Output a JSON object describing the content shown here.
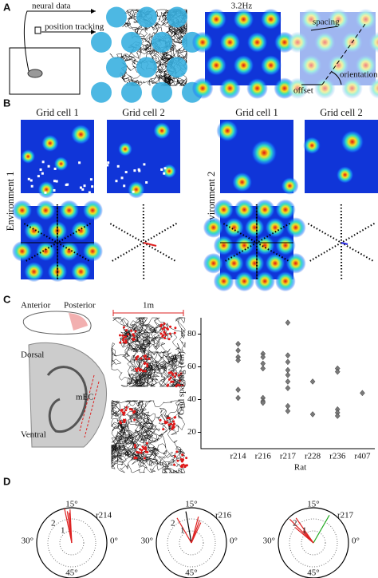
{
  "panel_a": {
    "label": "A",
    "neural_data": "neural data",
    "position_tracking": "position tracking",
    "peak_rate": "3.2Hz",
    "spacing": "spacing",
    "orientation": "orientation",
    "offset": "offset"
  },
  "panel_b": {
    "label": "B",
    "environments": [
      {
        "name": "Environment 1",
        "cells": [
          "Grid cell 1",
          "Grid cell 2"
        ]
      },
      {
        "name": "Environment 2",
        "cells": [
          "Grid cell 1",
          "Grid cell 2"
        ]
      }
    ]
  },
  "panel_c": {
    "label": "C",
    "anterior": "Anterior",
    "posterior": "Posterior",
    "dorsal": "Dorsal",
    "ventral": "Ventral",
    "mec": "mEC",
    "scale": "1m"
  },
  "chart_data": {
    "type": "scatter",
    "xlabel": "Rat",
    "ylabel": "Grid spacing (cm)",
    "categories": [
      "r214",
      "r216",
      "r217",
      "r228",
      "r236",
      "r407"
    ],
    "values": [
      [
        74,
        70,
        66,
        64,
        46,
        41
      ],
      [
        68,
        66,
        62,
        59,
        41,
        39,
        38
      ],
      [
        87,
        67,
        63,
        58,
        55,
        51,
        47,
        36,
        33
      ],
      [
        51,
        31
      ],
      [
        59,
        57,
        34,
        32,
        30
      ],
      [
        44
      ]
    ],
    "color": "#7a7a7a",
    "ylim": [
      10,
      90
    ],
    "yticks": [
      20,
      40,
      60,
      80
    ]
  },
  "panel_d": {
    "label": "D",
    "angles": [
      "15°",
      "30°",
      "0°",
      "45°"
    ],
    "rings": [
      "1",
      "2"
    ],
    "rats": [
      "r214",
      "r216",
      "r217"
    ]
  }
}
